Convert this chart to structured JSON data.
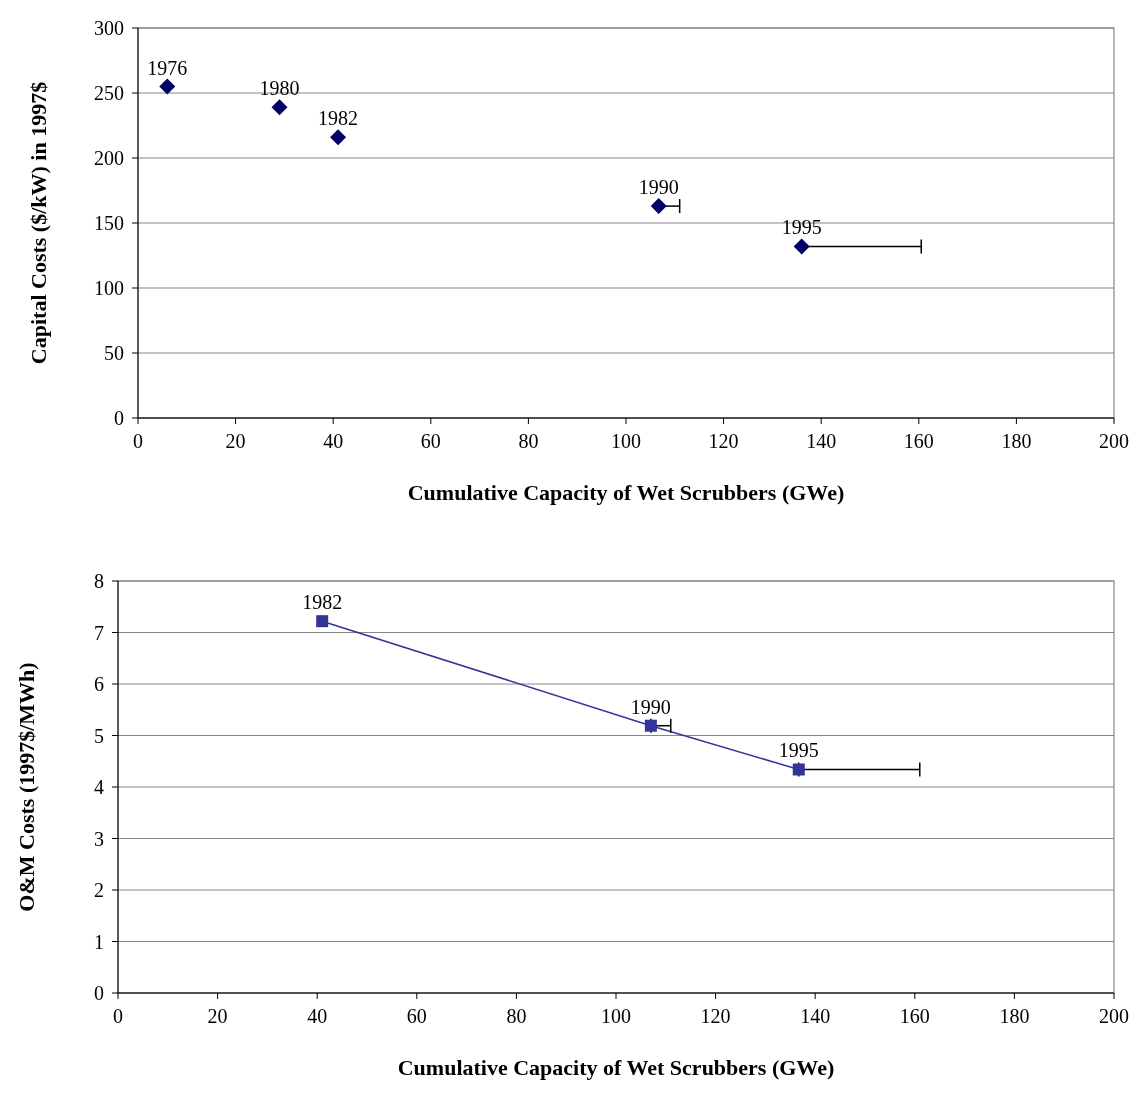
{
  "chart_data": [
    {
      "type": "scatter",
      "xlabel": "Cumulative Capacity of Wet Scrubbers (GWe)",
      "ylabel": "Capital Costs ($/kW) in 1997$",
      "xlim": [
        0,
        200
      ],
      "xticks": [
        0,
        20,
        40,
        60,
        80,
        100,
        120,
        140,
        160,
        180,
        200
      ],
      "ylim": [
        0,
        300
      ],
      "yticks": [
        0,
        50,
        100,
        150,
        200,
        250,
        300
      ],
      "grid": "y",
      "marker": "diamond",
      "series": [
        {
          "color": "#000066",
          "x": [
            6,
            29,
            41,
            106.7,
            136
          ],
          "values": [
            255,
            239,
            216,
            163,
            132
          ],
          "xerrors": [
            null,
            null,
            null,
            [
              106.7,
              111
            ],
            [
              136,
              160.5
            ]
          ]
        }
      ],
      "annotations": [
        {
          "text": "1976",
          "x": 6,
          "y": 255
        },
        {
          "text": "1980",
          "x": 29,
          "y": 239
        },
        {
          "text": "1982",
          "x": 41,
          "y": 216
        },
        {
          "text": "1990",
          "x": 106.7,
          "y": 163
        },
        {
          "text": "1995",
          "x": 136,
          "y": 132
        }
      ]
    },
    {
      "type": "line",
      "xlabel": "Cumulative Capacity of Wet Scrubbers (GWe)",
      "ylabel": "O&M Costs (1997$/MWh)",
      "xlim": [
        0,
        200
      ],
      "xticks": [
        0,
        20,
        40,
        60,
        80,
        100,
        120,
        140,
        160,
        180,
        200
      ],
      "ylim": [
        0,
        8
      ],
      "yticks": [
        0,
        1,
        2,
        3,
        4,
        5,
        6,
        7,
        8
      ],
      "grid": "y",
      "marker": "square",
      "line_style": "solid",
      "series": [
        {
          "color": "#333399",
          "x": [
            41,
            107,
            136.7
          ],
          "values": [
            7.22,
            5.19,
            4.34
          ],
          "xerrors": [
            null,
            [
              107,
              111
            ],
            [
              136.7,
              161
            ]
          ]
        }
      ],
      "annotations": [
        {
          "text": "1982",
          "x": 41,
          "y": 7.22
        },
        {
          "text": "1990",
          "x": 107,
          "y": 5.19
        },
        {
          "text": "1995",
          "x": 136.7,
          "y": 4.34
        }
      ]
    }
  ]
}
